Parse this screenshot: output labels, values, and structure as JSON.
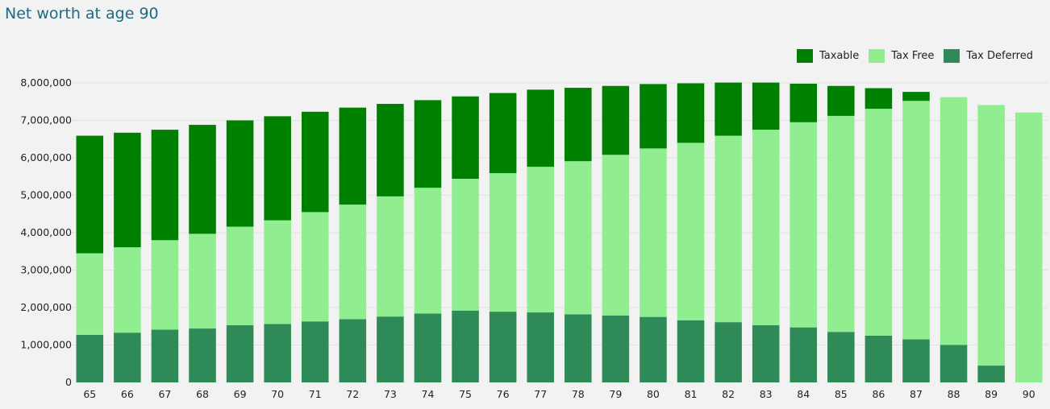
{
  "title": "Net worth at age 90",
  "chart_data": {
    "type": "bar",
    "stacked": true,
    "title": "Net worth at age 90",
    "xlabel": "",
    "ylabel": "",
    "ylim": [
      0,
      8000000
    ],
    "y_ticks": [
      0,
      1000000,
      2000000,
      3000000,
      4000000,
      5000000,
      6000000,
      7000000,
      8000000
    ],
    "y_tick_labels": [
      "0",
      "1,000,000",
      "2,000,000",
      "3,000,000",
      "4,000,000",
      "5,000,000",
      "6,000,000",
      "7,000,000",
      "8,000,000"
    ],
    "grid": true,
    "legend_position": "top-right",
    "categories": [
      "65",
      "66",
      "67",
      "68",
      "69",
      "70",
      "71",
      "72",
      "73",
      "74",
      "75",
      "76",
      "77",
      "78",
      "79",
      "80",
      "81",
      "82",
      "83",
      "84",
      "85",
      "86",
      "87",
      "88",
      "89",
      "90"
    ],
    "series": [
      {
        "name": "Tax Deferred",
        "color": "#2e8b57",
        "values": [
          1270000,
          1330000,
          1410000,
          1440000,
          1530000,
          1560000,
          1630000,
          1690000,
          1760000,
          1840000,
          1920000,
          1890000,
          1870000,
          1820000,
          1790000,
          1750000,
          1660000,
          1610000,
          1530000,
          1470000,
          1350000,
          1250000,
          1150000,
          1000000,
          450000,
          0
        ]
      },
      {
        "name": "Tax Free",
        "color": "#90ee90",
        "values": [
          2180000,
          2280000,
          2390000,
          2530000,
          2630000,
          2770000,
          2920000,
          3060000,
          3210000,
          3360000,
          3520000,
          3700000,
          3890000,
          4090000,
          4290000,
          4500000,
          4740000,
          4980000,
          5220000,
          5480000,
          5770000,
          6060000,
          6370000,
          6620000,
          6960000,
          7210000
        ]
      },
      {
        "name": "Taxable",
        "color": "#008000",
        "values": [
          3140000,
          3060000,
          2950000,
          2910000,
          2840000,
          2780000,
          2680000,
          2590000,
          2470000,
          2340000,
          2200000,
          2140000,
          2060000,
          1960000,
          1840000,
          1720000,
          1590000,
          1420000,
          1260000,
          1030000,
          800000,
          550000,
          240000,
          0,
          0,
          0
        ]
      }
    ]
  },
  "legend": [
    {
      "label": "Taxable",
      "color": "#008000"
    },
    {
      "label": "Tax Free",
      "color": "#90ee90"
    },
    {
      "label": "Tax Deferred",
      "color": "#2e8b57"
    }
  ]
}
